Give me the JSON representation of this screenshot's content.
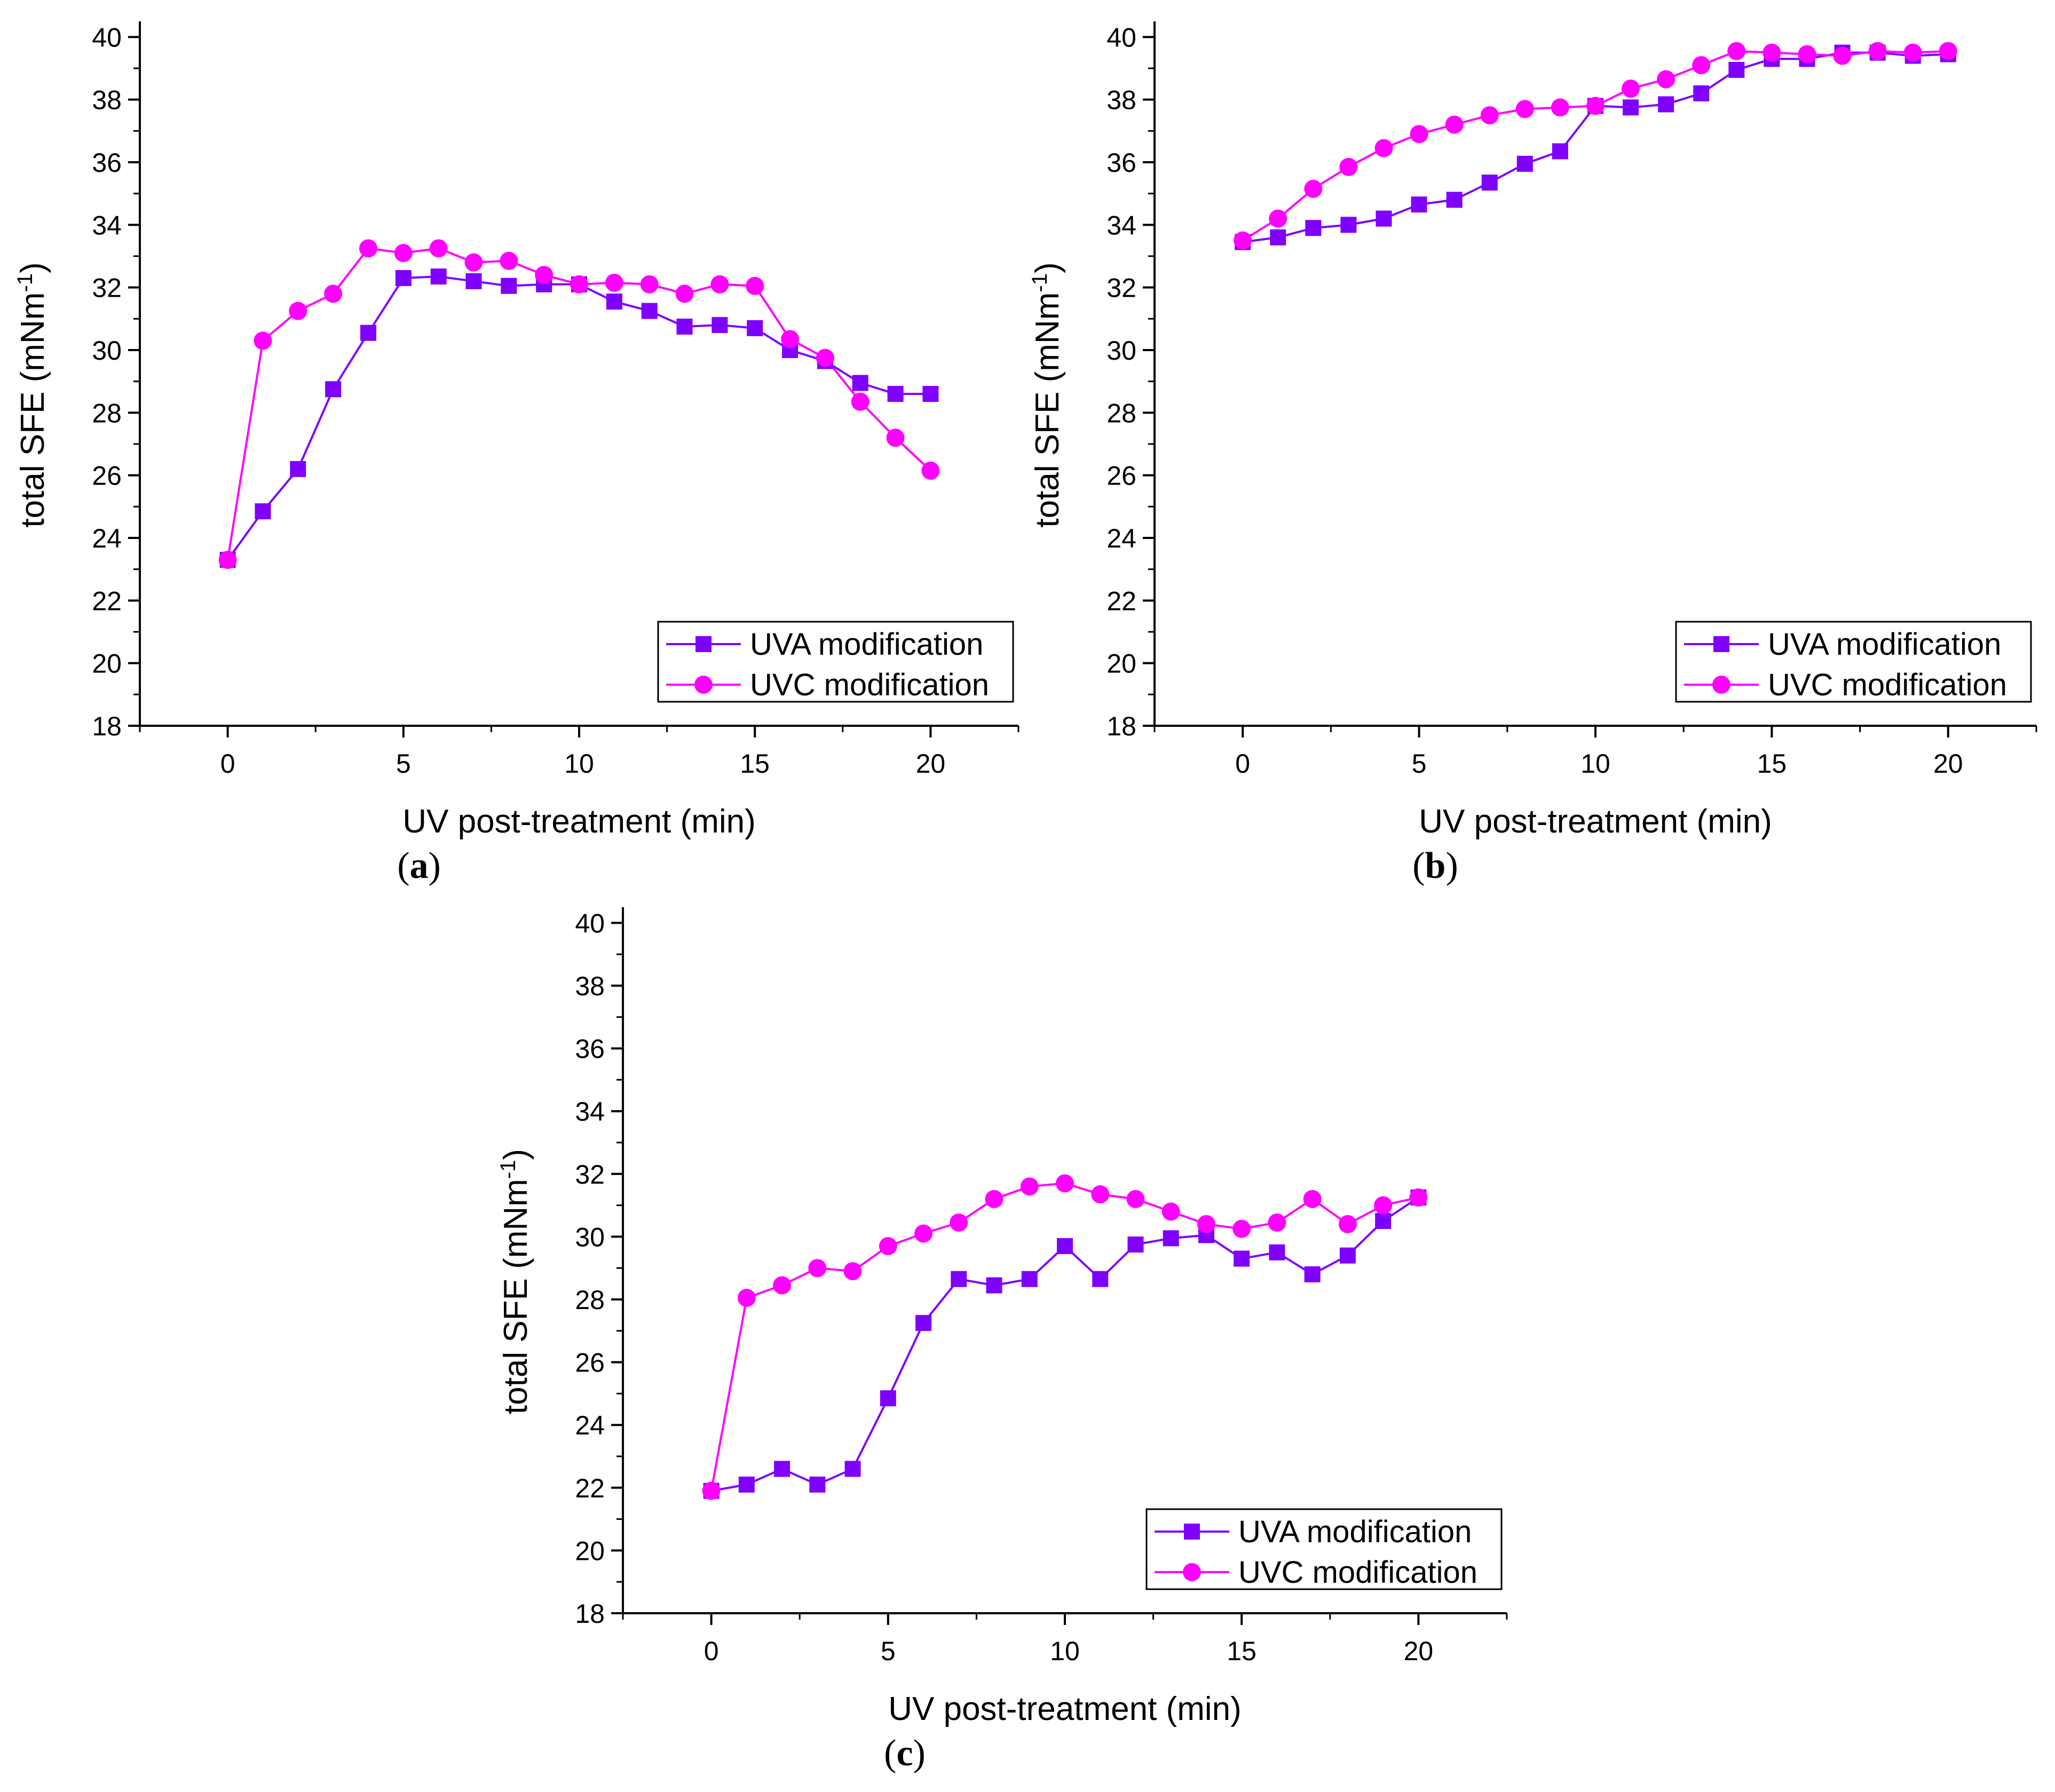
{
  "chart_data": [
    {
      "type": "line",
      "panel_label": "a",
      "xlabel": "UV post-treatment (min)",
      "ylabel": "total SFE (mNm",
      "ylabel_sup": "-1",
      "ylabel_close": ")",
      "xlim": [
        -2.5,
        22.5
      ],
      "ylim": [
        18,
        40.5
      ],
      "xticks": [
        0,
        5,
        10,
        15,
        20
      ],
      "yticks": [
        18,
        20,
        22,
        24,
        26,
        28,
        30,
        32,
        34,
        36,
        38,
        40
      ],
      "legend_position": "bottom-right",
      "x": [
        0,
        1,
        2,
        3,
        4,
        5,
        6,
        7,
        8,
        9,
        10,
        11,
        12,
        13,
        14,
        15,
        16,
        17,
        18,
        19,
        20
      ],
      "series": [
        {
          "name": "UVA modification",
          "marker": "square",
          "color": "#7F00FF",
          "values": [
            23.3,
            24.85,
            26.2,
            28.75,
            30.55,
            32.3,
            32.35,
            32.2,
            32.05,
            32.1,
            32.1,
            31.55,
            31.25,
            30.75,
            30.8,
            30.7,
            30.0,
            29.65,
            28.95,
            28.6,
            28.6
          ]
        },
        {
          "name": "UVC modification",
          "marker": "circle",
          "color": "#FF00FF",
          "values": [
            23.3,
            30.3,
            31.25,
            31.8,
            33.25,
            33.1,
            33.25,
            32.8,
            32.85,
            32.4,
            32.1,
            32.15,
            32.1,
            31.8,
            32.1,
            32.05,
            30.35,
            29.75,
            28.35,
            27.2,
            26.15
          ]
        }
      ]
    },
    {
      "type": "line",
      "panel_label": "b",
      "xlabel": "UV post-treatment (min)",
      "ylabel": "total SFE (mNm",
      "ylabel_sup": "-1",
      "ylabel_close": ")",
      "xlim": [
        -2.5,
        22.5
      ],
      "ylim": [
        18,
        40.5
      ],
      "xticks": [
        0,
        5,
        10,
        15,
        20
      ],
      "yticks": [
        18,
        20,
        22,
        24,
        26,
        28,
        30,
        32,
        34,
        36,
        38,
        40
      ],
      "legend_position": "bottom-right",
      "x": [
        0,
        1,
        2,
        3,
        4,
        5,
        6,
        7,
        8,
        9,
        10,
        11,
        12,
        13,
        14,
        15,
        16,
        17,
        18,
        19,
        20
      ],
      "series": [
        {
          "name": "UVA modification",
          "marker": "square",
          "color": "#7F00FF",
          "values": [
            33.45,
            33.6,
            33.9,
            34.0,
            34.2,
            34.65,
            34.8,
            35.35,
            35.95,
            36.35,
            37.8,
            37.75,
            37.85,
            38.2,
            38.95,
            39.3,
            39.3,
            39.5,
            39.5,
            39.4,
            39.45
          ]
        },
        {
          "name": "UVC modification",
          "marker": "circle",
          "color": "#FF00FF",
          "values": [
            33.5,
            34.2,
            35.15,
            35.85,
            36.45,
            36.9,
            37.2,
            37.5,
            37.7,
            37.75,
            37.8,
            38.35,
            38.65,
            39.1,
            39.55,
            39.5,
            39.45,
            39.4,
            39.55,
            39.5,
            39.55
          ]
        }
      ]
    },
    {
      "type": "line",
      "panel_label": "c",
      "xlabel": "UV post-treatment (min)",
      "ylabel": "total SFE (mNm",
      "ylabel_sup": "-1",
      "ylabel_close": ")",
      "xlim": [
        -2.5,
        22.5
      ],
      "ylim": [
        18,
        40.5
      ],
      "xticks": [
        0,
        5,
        10,
        15,
        20
      ],
      "yticks": [
        18,
        20,
        22,
        24,
        26,
        28,
        30,
        32,
        34,
        36,
        38,
        40
      ],
      "legend_position": "bottom-right",
      "x": [
        0,
        1,
        2,
        3,
        4,
        5,
        6,
        7,
        8,
        9,
        10,
        11,
        12,
        13,
        14,
        15,
        16,
        17,
        18,
        19,
        20
      ],
      "series": [
        {
          "name": "UVA modification",
          "marker": "square",
          "color": "#7F00FF",
          "values": [
            21.9,
            22.1,
            22.6,
            22.1,
            22.6,
            24.85,
            27.25,
            28.65,
            28.45,
            28.65,
            29.7,
            28.65,
            29.75,
            29.95,
            30.05,
            29.3,
            29.5,
            28.8,
            29.4,
            30.5,
            31.25
          ]
        },
        {
          "name": "UVC modification",
          "marker": "circle",
          "color": "#FF00FF",
          "values": [
            21.9,
            28.05,
            28.45,
            29.0,
            28.9,
            29.7,
            30.1,
            30.45,
            31.2,
            31.6,
            31.7,
            31.35,
            31.2,
            30.8,
            30.4,
            30.25,
            30.45,
            31.2,
            30.4,
            31.0,
            31.25
          ]
        }
      ]
    }
  ]
}
